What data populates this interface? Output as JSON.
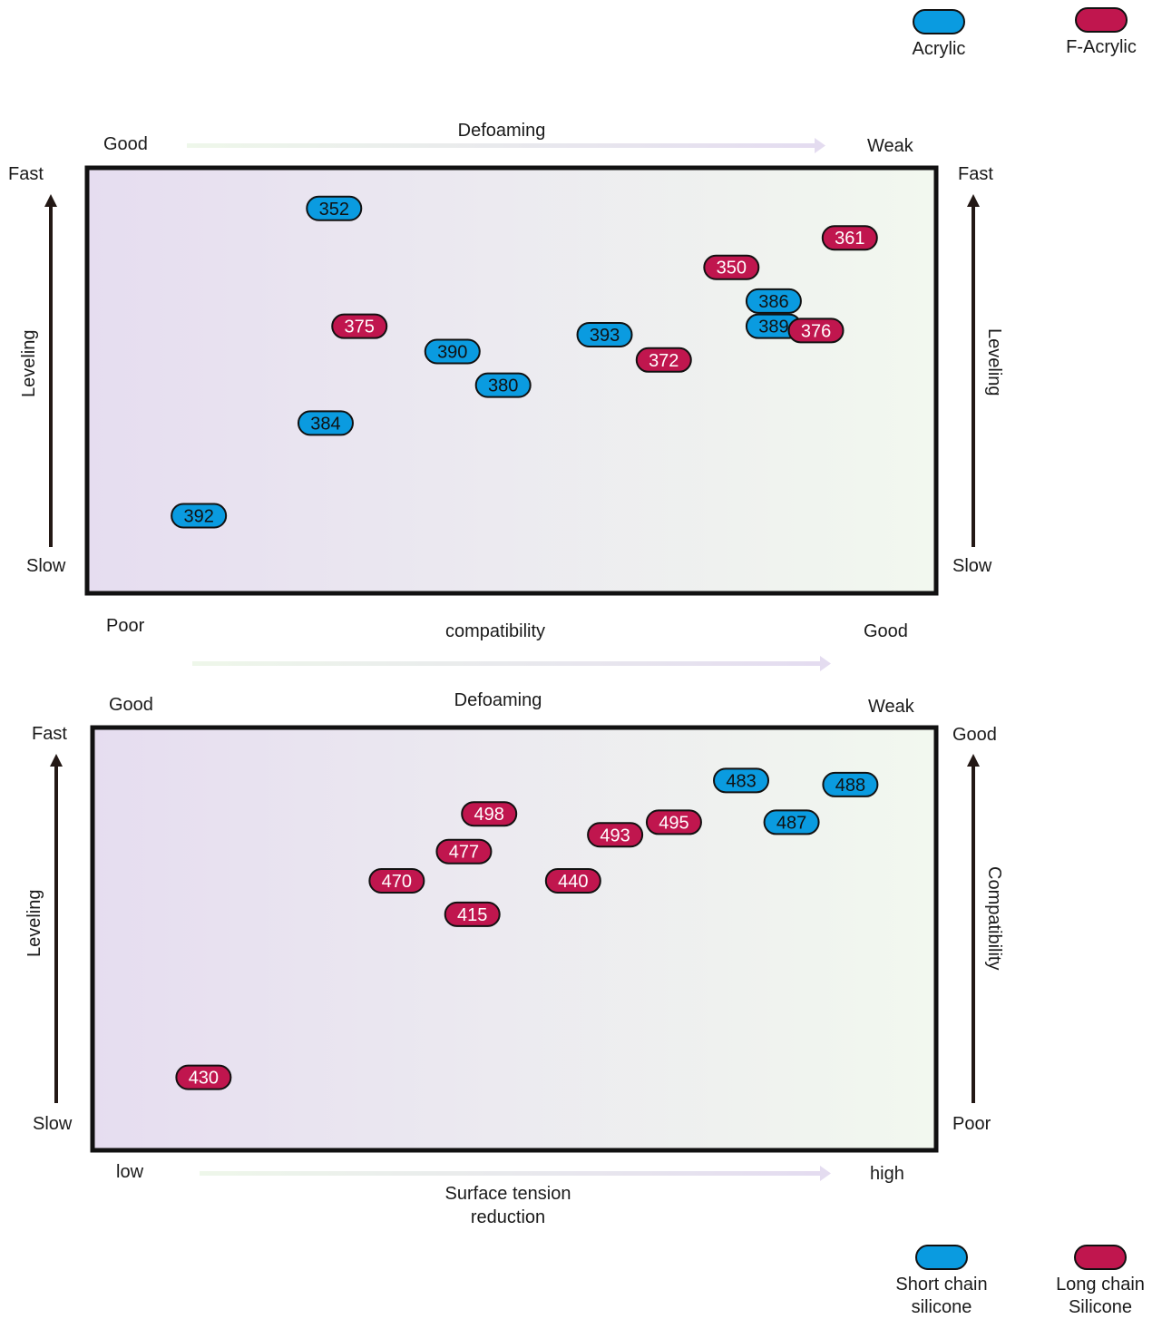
{
  "legend_top": {
    "items": [
      {
        "label": "Acrylic",
        "color": "#0a9be0"
      },
      {
        "label": "F-Acrylic",
        "color": "#c0164e"
      }
    ]
  },
  "legend_bottom": {
    "items": [
      {
        "label": "Short chain silicone",
        "line1": "Short chain",
        "line2": "silicone",
        "color": "#0a9be0"
      },
      {
        "label": "Long chain Silicone",
        "line1": "Long chain",
        "line2": "Silicone",
        "color": "#c0164e"
      }
    ]
  },
  "chart_data": [
    {
      "type": "scatter",
      "top_axis": {
        "label": "Defoaming",
        "left": "Good",
        "right": "Weak"
      },
      "bottom_axis": {
        "label": "compatibility",
        "left": "Poor",
        "right": "Good"
      },
      "left_axis": {
        "label": "Leveling",
        "top": "Fast",
        "bottom": "Slow"
      },
      "right_axis": {
        "label": "Leveling",
        "top": "Fast",
        "bottom": "Slow"
      },
      "xlim": [
        0,
        100
      ],
      "ylim": [
        0,
        100
      ],
      "background": {
        "left": "#e6ddf0",
        "right": "#f2f8ef"
      },
      "series": [
        {
          "name": "Acrylic",
          "color": "#0a9be0",
          "points": [
            {
              "label": "352",
              "x": 29,
              "y": 91
            },
            {
              "label": "390",
              "x": 43,
              "y": 57
            },
            {
              "label": "380",
              "x": 49,
              "y": 49
            },
            {
              "label": "393",
              "x": 61,
              "y": 61
            },
            {
              "label": "386",
              "x": 81,
              "y": 69
            },
            {
              "label": "389",
              "x": 81,
              "y": 63
            },
            {
              "label": "384",
              "x": 28,
              "y": 40
            },
            {
              "label": "392",
              "x": 13,
              "y": 18
            }
          ]
        },
        {
          "name": "F-Acrylic",
          "color": "#c0164e",
          "points": [
            {
              "label": "361",
              "x": 90,
              "y": 84
            },
            {
              "label": "350",
              "x": 76,
              "y": 77
            },
            {
              "label": "375",
              "x": 32,
              "y": 63
            },
            {
              "label": "376",
              "x": 86,
              "y": 62
            },
            {
              "label": "372",
              "x": 68,
              "y": 55
            }
          ]
        }
      ]
    },
    {
      "type": "scatter",
      "top_axis": {
        "label": "Defoaming",
        "left": "Good",
        "right": "Weak"
      },
      "bottom_axis": {
        "label": "Surface tension reduction",
        "line1": "Surface tension",
        "line2": "reduction",
        "left": "low",
        "right": "high"
      },
      "left_axis": {
        "label": "Leveling",
        "top": "Fast",
        "bottom": "Slow"
      },
      "right_axis": {
        "label": "Compatibility",
        "top": "Good",
        "bottom": "Poor"
      },
      "xlim": [
        0,
        100
      ],
      "ylim": [
        0,
        100
      ],
      "background": {
        "left": "#e6ddf0",
        "right": "#f2f8ef"
      },
      "series": [
        {
          "name": "Short chain silicone",
          "color": "#0a9be0",
          "points": [
            {
              "label": "483",
              "x": 77,
              "y": 88
            },
            {
              "label": "488",
              "x": 90,
              "y": 87
            },
            {
              "label": "487",
              "x": 83,
              "y": 78
            }
          ]
        },
        {
          "name": "Long chain Silicone",
          "color": "#c0164e",
          "points": [
            {
              "label": "498",
              "x": 47,
              "y": 80
            },
            {
              "label": "477",
              "x": 44,
              "y": 71
            },
            {
              "label": "493",
              "x": 62,
              "y": 75
            },
            {
              "label": "495",
              "x": 69,
              "y": 78
            },
            {
              "label": "470",
              "x": 36,
              "y": 64
            },
            {
              "label": "440",
              "x": 57,
              "y": 64
            },
            {
              "label": "415",
              "x": 45,
              "y": 56
            },
            {
              "label": "430",
              "x": 13,
              "y": 17
            }
          ]
        }
      ]
    }
  ]
}
